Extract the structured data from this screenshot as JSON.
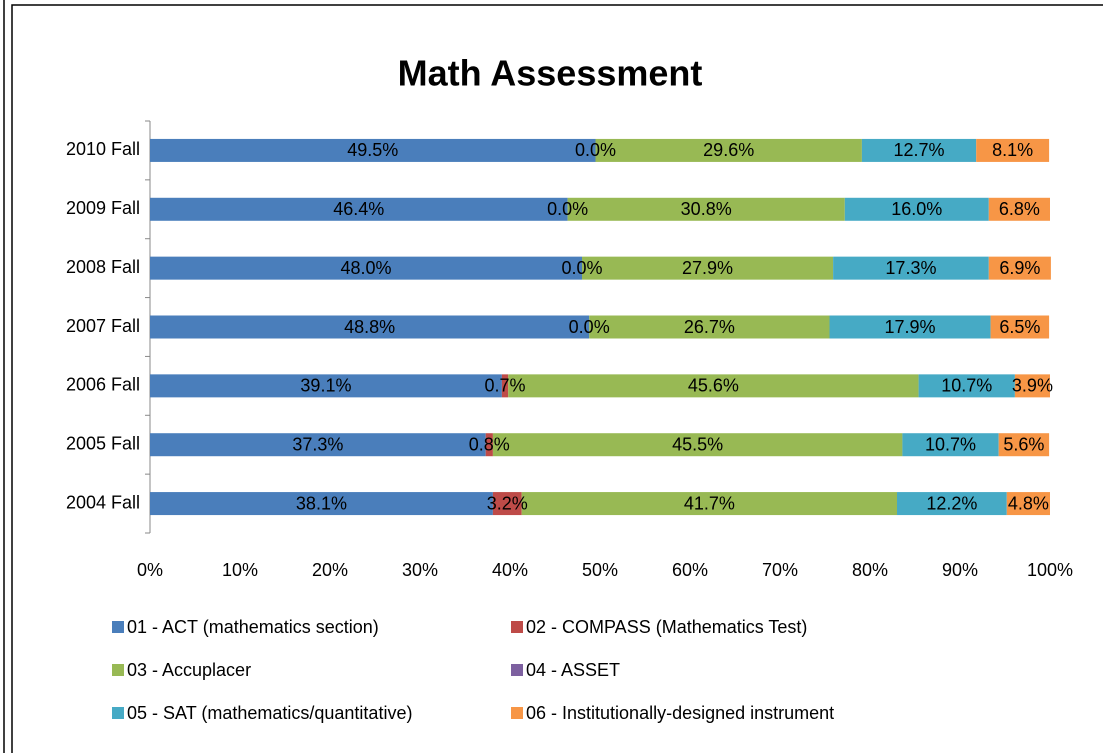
{
  "chart_data": {
    "type": "stacked-bar-horizontal",
    "title": "Math Assessment",
    "categories": [
      "2010 Fall",
      "2009 Fall",
      "2008 Fall",
      "2007 Fall",
      "2006 Fall",
      "2005 Fall",
      "2004 Fall"
    ],
    "series": [
      {
        "name": "01 - ACT (mathematics section)",
        "color": "#4a7ebb",
        "show_labels": true,
        "values": [
          49.5,
          46.4,
          48.0,
          48.8,
          39.1,
          37.3,
          38.1
        ],
        "value_labels": [
          "49.5%",
          "46.4%",
          "48.0%",
          "48.8%",
          "39.1%",
          "37.3%",
          "38.1%"
        ]
      },
      {
        "name": "02 - COMPASS (Mathematics Test)",
        "color": "#be4b48",
        "show_labels": true,
        "values": [
          0.0,
          0.0,
          0.0,
          0.0,
          0.7,
          0.8,
          3.2
        ],
        "value_labels": [
          "0.0%",
          "0.0%",
          "0.0%",
          "0.0%",
          "0.7%",
          "0.8%",
          "3.2%"
        ]
      },
      {
        "name": "03 - Accuplacer",
        "color": "#98b954",
        "show_labels": true,
        "values": [
          29.6,
          30.8,
          27.9,
          26.7,
          45.6,
          45.5,
          41.7
        ],
        "value_labels": [
          "29.6%",
          "30.8%",
          "27.9%",
          "26.7%",
          "45.6%",
          "45.5%",
          "41.7%"
        ]
      },
      {
        "name": "04 - ASSET",
        "color": "#7d60a0",
        "show_labels": false,
        "values": [
          0,
          0,
          0,
          0,
          0,
          0,
          0
        ]
      },
      {
        "name": "05 - SAT (mathematics/quantitative)",
        "color": "#46aac5",
        "show_labels": true,
        "values": [
          12.7,
          16.0,
          17.3,
          17.9,
          10.7,
          10.7,
          12.2
        ],
        "value_labels": [
          "12.7%",
          "16.0%",
          "17.3%",
          "17.9%",
          "10.7%",
          "10.7%",
          "12.2%"
        ]
      },
      {
        "name": "06 - Institutionally-designed instrument",
        "color": "#f79646",
        "show_labels": true,
        "values": [
          8.1,
          6.8,
          6.9,
          6.5,
          3.9,
          5.6,
          4.8
        ],
        "value_labels": [
          "8.1%",
          "6.8%",
          "6.9%",
          "6.5%",
          "3.9%",
          "5.6%",
          "4.8%"
        ]
      }
    ],
    "xlim": [
      0,
      100
    ],
    "xticks": [
      {
        "value": 0,
        "label": "0%"
      },
      {
        "value": 10,
        "label": "10%"
      },
      {
        "value": 20,
        "label": "20%"
      },
      {
        "value": 30,
        "label": "30%"
      },
      {
        "value": 40,
        "label": "40%"
      },
      {
        "value": 50,
        "label": "50%"
      },
      {
        "value": 60,
        "label": "60%"
      },
      {
        "value": 70,
        "label": "70%"
      },
      {
        "value": 80,
        "label": "80%"
      },
      {
        "value": 90,
        "label": "90%"
      },
      {
        "value": 100,
        "label": "100%"
      }
    ],
    "grid": false,
    "legend": "bottom"
  }
}
